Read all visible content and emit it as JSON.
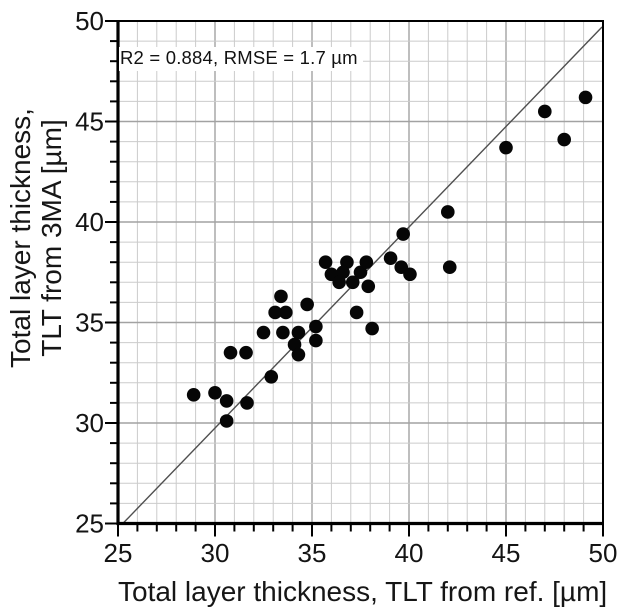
{
  "chart_data": {
    "type": "scatter",
    "title": "",
    "xlabel": "Total layer thickness, TLT from ref. [µm]",
    "ylabel_line1": "Total layer thickness,",
    "ylabel_line2": "TLT from 3MA [µm]",
    "annotation": "R2 = 0.884, RMSE = 1.7 µm",
    "xlim": [
      25,
      50
    ],
    "ylim": [
      25,
      50
    ],
    "x_major_ticks": [
      25,
      30,
      35,
      40,
      45,
      50
    ],
    "y_major_ticks": [
      25,
      30,
      35,
      40,
      45,
      50
    ],
    "minor_tick_step": 1,
    "grid": "major-and-minor",
    "legend": "none",
    "fit_line": {
      "x1": 25.25,
      "y1": 25.0,
      "x2": 49.95,
      "y2": 49.7
    },
    "points": [
      [
        28.9,
        31.4
      ],
      [
        30.0,
        31.5
      ],
      [
        30.6,
        31.1
      ],
      [
        31.65,
        31.0
      ],
      [
        30.6,
        30.1
      ],
      [
        32.9,
        32.3
      ],
      [
        30.8,
        33.5
      ],
      [
        31.6,
        33.5
      ],
      [
        32.5,
        34.5
      ],
      [
        33.5,
        34.5
      ],
      [
        33.4,
        36.3
      ],
      [
        33.1,
        35.5
      ],
      [
        33.65,
        35.5
      ],
      [
        34.75,
        35.9
      ],
      [
        34.3,
        34.5
      ],
      [
        35.2,
        34.8
      ],
      [
        35.2,
        34.1
      ],
      [
        34.1,
        33.9
      ],
      [
        34.3,
        33.4
      ],
      [
        35.7,
        38.0
      ],
      [
        36.8,
        38.0
      ],
      [
        36.0,
        37.4
      ],
      [
        36.6,
        37.5
      ],
      [
        37.5,
        37.5
      ],
      [
        37.8,
        38.0
      ],
      [
        36.4,
        37.0
      ],
      [
        37.1,
        37.0
      ],
      [
        37.9,
        36.8
      ],
      [
        37.3,
        35.5
      ],
      [
        38.1,
        34.7
      ],
      [
        39.05,
        38.2
      ],
      [
        39.6,
        37.75
      ],
      [
        39.7,
        39.4
      ],
      [
        40.05,
        37.4
      ],
      [
        42.0,
        40.5
      ],
      [
        42.1,
        37.75
      ],
      [
        45.0,
        43.7
      ],
      [
        47.0,
        45.5
      ],
      [
        48.0,
        44.1
      ],
      [
        49.1,
        46.2
      ]
    ],
    "colors": {
      "dot": "#060606",
      "fit_line": "#4f4f4f",
      "minor_grid": "#cbcbcb",
      "major_grid": "#a2a2a2",
      "frame": "#000000",
      "text": "#141414"
    },
    "marker_radius_px": 6.8
  }
}
